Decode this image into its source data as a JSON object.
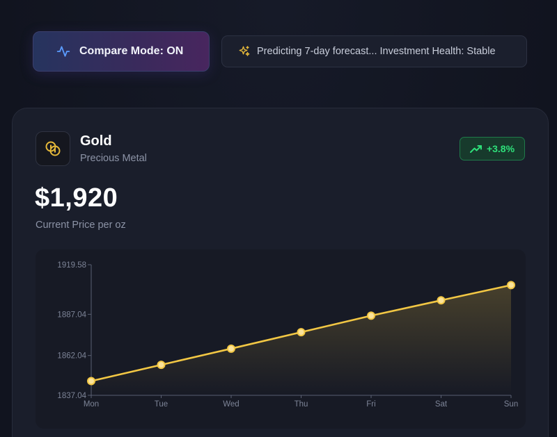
{
  "toolbar": {
    "compare_label": "Compare Mode: ON",
    "compare_icon": "activity-icon",
    "status_text": "Predicting 7-day forecast... Investment Health: Stable",
    "status_icon": "sparkles-icon"
  },
  "asset": {
    "name": "Gold",
    "type": "Precious Metal",
    "icon": "coins-icon",
    "change": "+3.8%",
    "change_icon": "trending-up-icon",
    "price": "$1,920",
    "price_caption": "Current Price per oz"
  },
  "colors": {
    "accent_gold": "#f2c744",
    "positive_green": "#2ee07a"
  },
  "chart_data": {
    "type": "line",
    "categories": [
      "Mon",
      "Tue",
      "Wed",
      "Thu",
      "Fri",
      "Sat",
      "Sun"
    ],
    "series": [
      {
        "values": [
          1846.0,
          1856.2,
          1866.2,
          1876.2,
          1886.2,
          1896.2,
          1906.2
        ]
      }
    ],
    "yticks": [
      "1837.04",
      "1862.04",
      "1887.04",
      "1919.58"
    ],
    "ylim": [
      1837.04,
      1919.58
    ],
    "grid": false,
    "area_fill": true
  }
}
